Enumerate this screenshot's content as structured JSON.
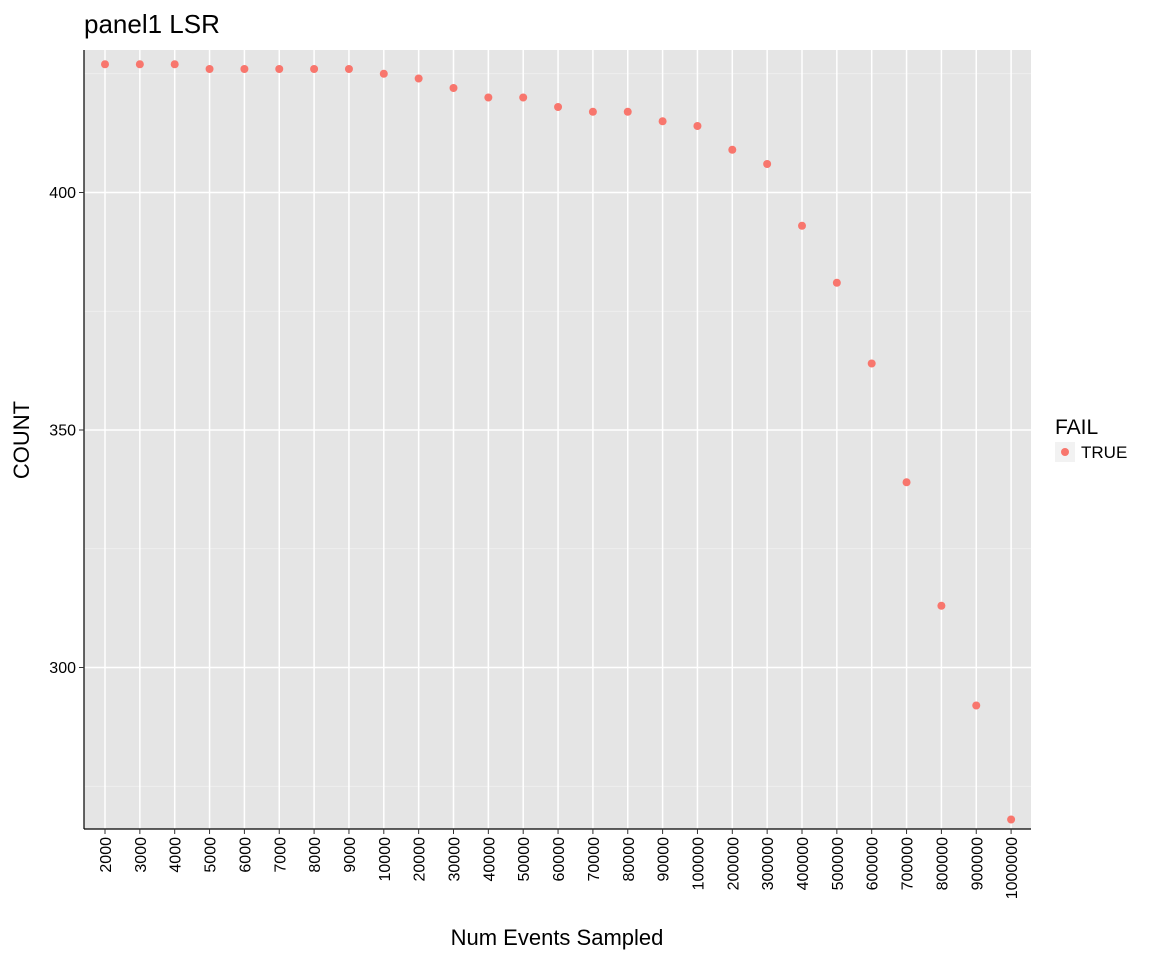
{
  "chart_data": {
    "type": "scatter",
    "title": "panel1 LSR",
    "xlabel": "Num Events Sampled",
    "ylabel": "COUNT",
    "categories": [
      "2000",
      "3000",
      "4000",
      "5000",
      "6000",
      "7000",
      "8000",
      "9000",
      "10000",
      "20000",
      "30000",
      "40000",
      "50000",
      "60000",
      "70000",
      "80000",
      "90000",
      "100000",
      "200000",
      "300000",
      "400000",
      "500000",
      "600000",
      "700000",
      "800000",
      "900000",
      "1000000"
    ],
    "series": [
      {
        "name": "TRUE",
        "color": "#F8766D",
        "values": [
          427,
          427,
          427,
          426,
          426,
          426,
          426,
          426,
          425,
          424,
          422,
          420,
          420,
          418,
          417,
          417,
          415,
          414,
          409,
          406,
          393,
          381,
          364,
          339,
          313,
          292,
          268
        ]
      }
    ],
    "y_ticks": [
      300,
      350,
      400
    ],
    "ylim": [
      266,
      430
    ],
    "grid": true,
    "panel_background": "#E5E5E5",
    "legend": {
      "title": "FAIL",
      "placement": "right",
      "entries": [
        "TRUE"
      ]
    }
  }
}
